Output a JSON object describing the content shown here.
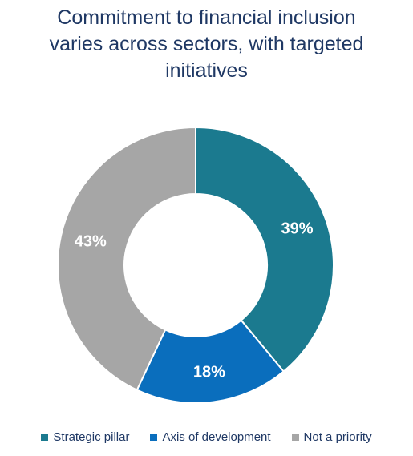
{
  "chart_data": {
    "type": "pie",
    "variant": "donut",
    "title_lines": [
      "Commitment to financial inclusion",
      "varies across sectors, with targeted",
      "initiatives"
    ],
    "categories": [
      "Strategic pillar",
      "Axis of development",
      "Not a priority"
    ],
    "values": [
      39,
      18,
      43
    ],
    "labels": [
      "39%",
      "18%",
      "43%"
    ],
    "colors": [
      "#1b7a8f",
      "#0a6ebd",
      "#a6a6a6"
    ],
    "start_angle_deg": 0,
    "legend_position": "bottom"
  }
}
